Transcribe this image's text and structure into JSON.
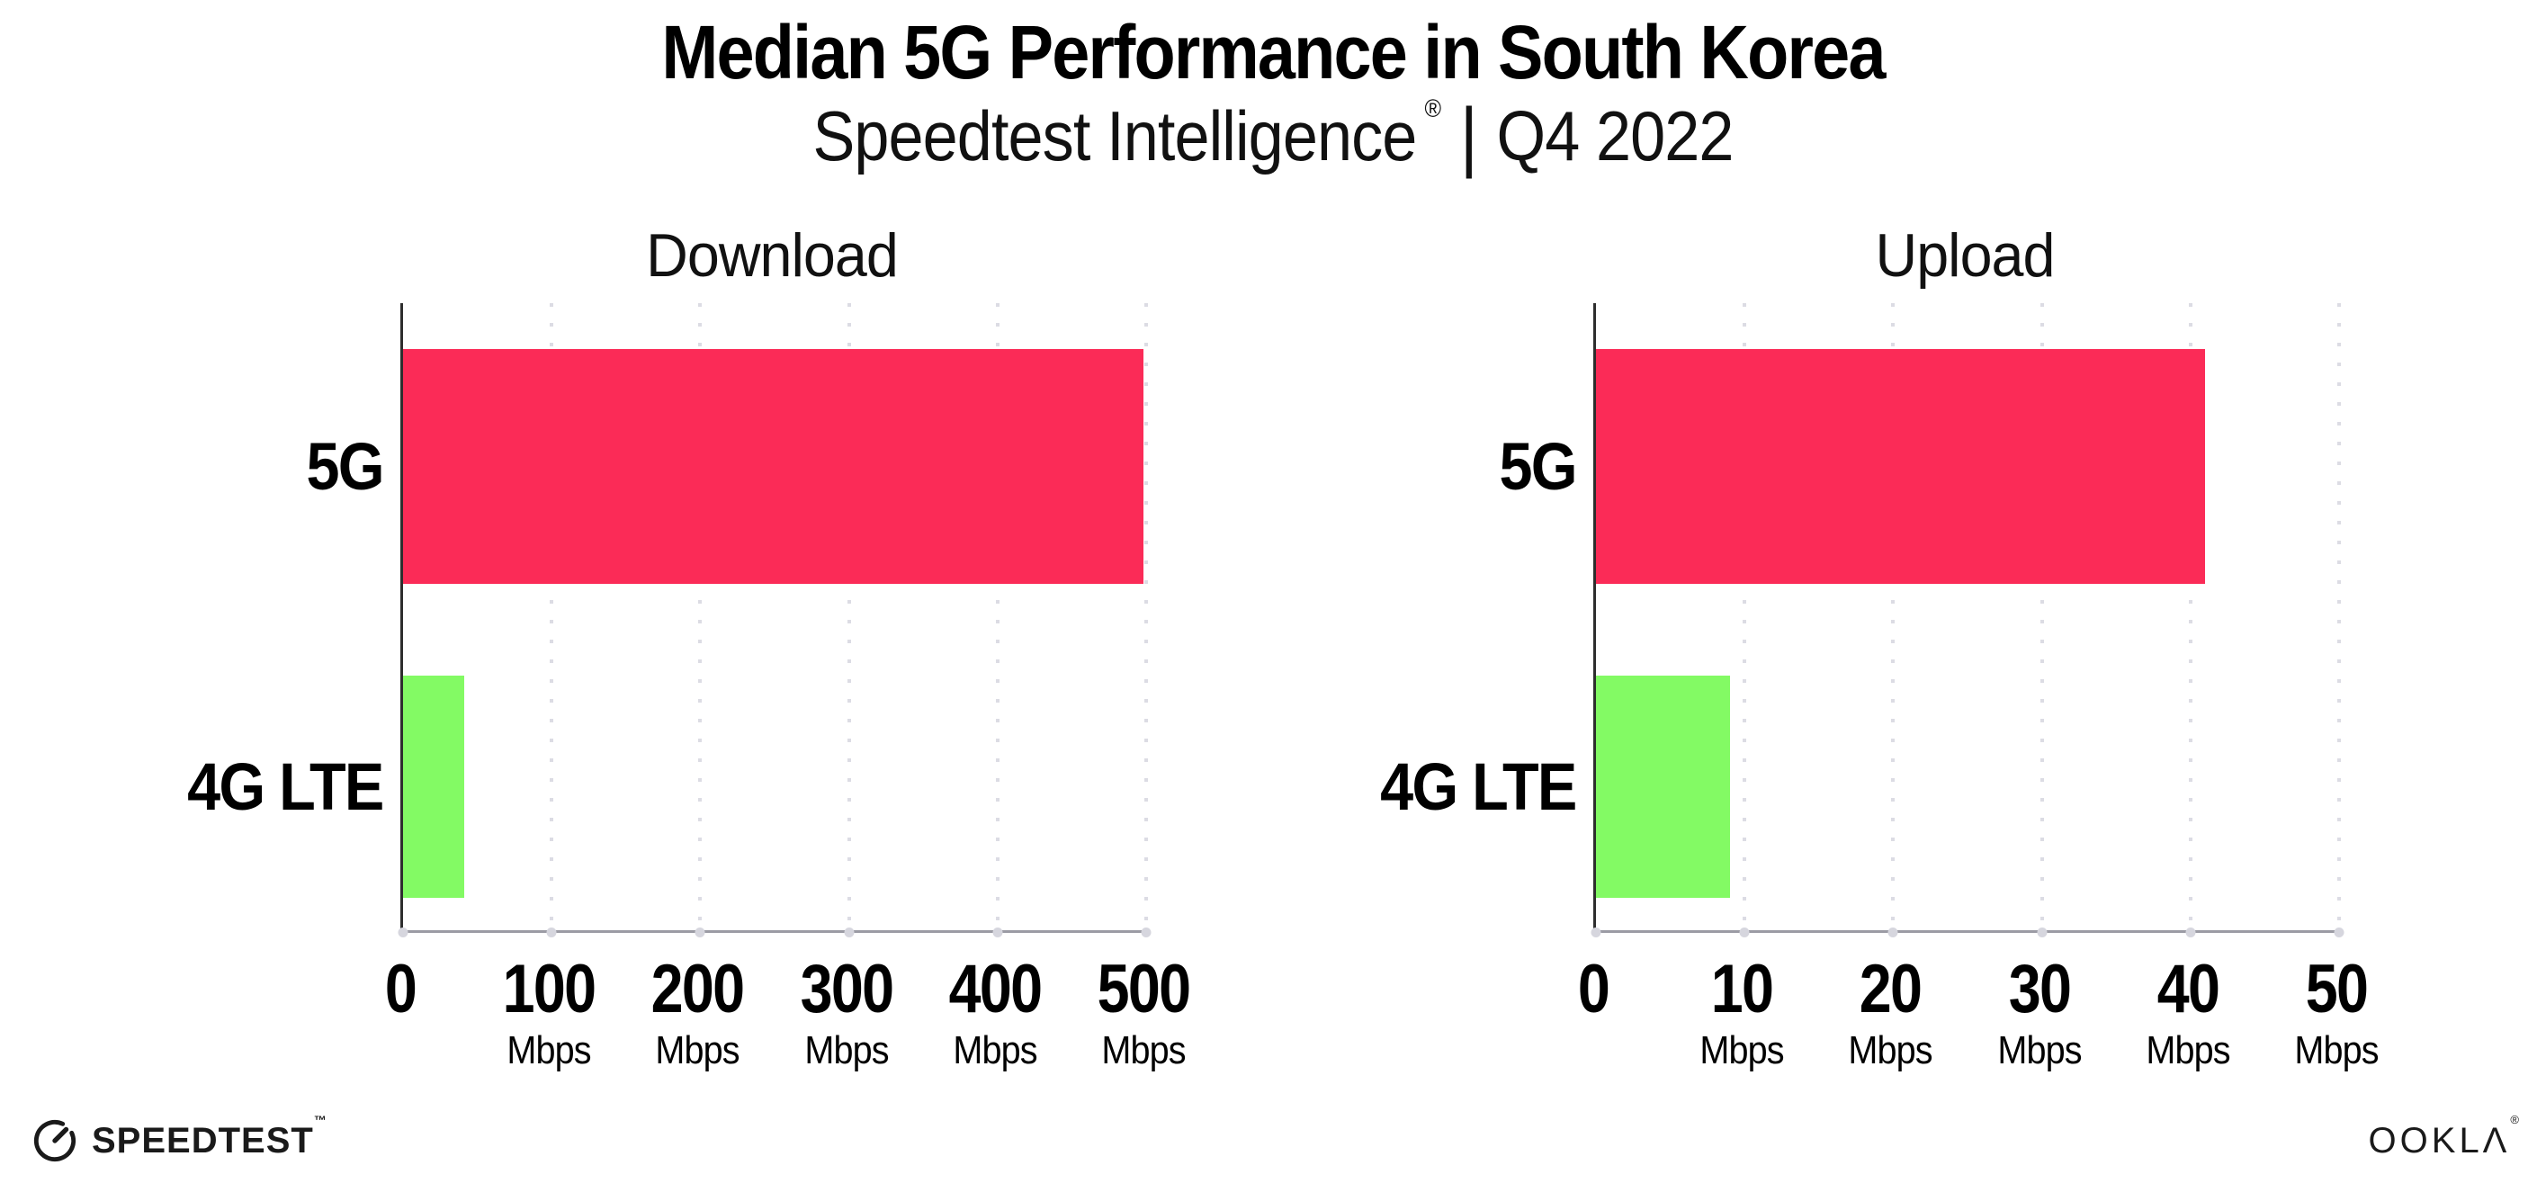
{
  "header": {
    "title": "Median 5G Performance in South Korea",
    "subtitle_product": "Speedtest Intelligence",
    "registered_mark": "®",
    "subtitle_separator": "|",
    "subtitle_period": "Q4 2022"
  },
  "chart_data": [
    {
      "type": "bar",
      "orientation": "horizontal",
      "title": "Download",
      "unit": "Mbps",
      "categories": [
        "5G",
        "4G LTE"
      ],
      "values": [
        498,
        41
      ],
      "xlim": [
        0,
        500
      ],
      "xticks": [
        0,
        100,
        200,
        300,
        400,
        500
      ],
      "bar_colors": [
        "#fb2b57",
        "#83fa64"
      ],
      "grid": "dotted-vertical",
      "legend": "none"
    },
    {
      "type": "bar",
      "orientation": "horizontal",
      "title": "Upload",
      "unit": "Mbps",
      "categories": [
        "5G",
        "4G LTE"
      ],
      "values": [
        41,
        9
      ],
      "xlim": [
        0,
        50
      ],
      "xticks": [
        0,
        10,
        20,
        30,
        40,
        50
      ],
      "bar_colors": [
        "#fb2b57",
        "#83fa64"
      ],
      "grid": "dotted-vertical",
      "legend": "none"
    }
  ],
  "footer": {
    "speedtest_text": "SPEEDTEST",
    "speedtest_mark": "™",
    "ookla_text": "OOKLΛ",
    "ookla_mark": "®"
  },
  "colors": {
    "bar_5g": "#fb2b57",
    "bar_4g_lte": "#83fa64",
    "gridline": "#dcdce4",
    "axis_left": "#2e2e2e",
    "axis_bottom": "#9b9ba4",
    "background": "#ffffff"
  }
}
